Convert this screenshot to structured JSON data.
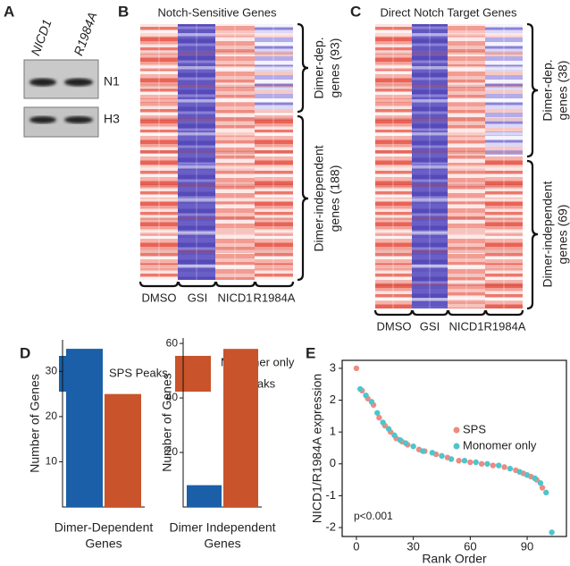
{
  "panel_a": {
    "label": "A",
    "lanes": [
      "NICD1",
      "R1984A"
    ],
    "bands": [
      "N1",
      "H3"
    ]
  },
  "panel_b": {
    "label": "B",
    "title": "Notch-Sensitive Genes",
    "groups": [
      "DMSO",
      "GSI",
      "NICD1",
      "R1984A"
    ],
    "clusters": [
      [
        "Dimer-dep.",
        "genes (93)"
      ],
      [
        "Dimer-independent",
        "genes (188)"
      ]
    ]
  },
  "panel_c": {
    "label": "C",
    "title": "Direct Notch Target Genes",
    "groups": [
      "DMSO",
      "GSI",
      "NICD1",
      "R1984A"
    ],
    "clusters": [
      [
        "Dimer-dep.",
        "genes (38)"
      ],
      [
        "Dimer-independent",
        "genes (69)"
      ]
    ]
  },
  "panel_d": {
    "label": "D",
    "legend": [
      {
        "lines": [
          "SPS Peaks"
        ],
        "color": "#1a5fa8"
      },
      {
        "lines": [
          "Monomer only",
          "Peaks"
        ],
        "color": "#c9532a"
      }
    ]
  },
  "panel_e": {
    "label": "E"
  },
  "chart_data": [
    {
      "type": "bar",
      "ylabel": "Number of Genes",
      "xlabel": [
        "Dimer-Dependent",
        "Genes"
      ],
      "values": [
        35,
        25
      ],
      "colors": [
        "#1a5fa8",
        "#c9532a"
      ],
      "ylim": [
        0,
        37
      ],
      "yticks": [
        10,
        20,
        30
      ]
    },
    {
      "type": "bar",
      "ylabel": "Number of Genes",
      "xlabel": [
        "Dimer Independent",
        "Genes"
      ],
      "values": [
        8,
        58
      ],
      "colors": [
        "#1a5fa8",
        "#c9532a"
      ],
      "ylim": [
        0,
        62
      ],
      "yticks": [
        20,
        40,
        60
      ]
    },
    {
      "type": "scatter",
      "xlabel": "Rank Order",
      "ylabel": "NICD1/R1984A expression",
      "annotation": "p<0.001",
      "xlim": [
        -7.5,
        110.7
      ],
      "xticks": [
        0,
        30,
        60,
        90
      ],
      "ylim": [
        -2.28,
        3.25
      ],
      "yticks": [
        -2,
        -1,
        0,
        1,
        2,
        3
      ],
      "series": [
        {
          "name": "SPS",
          "color": "#ee8a80",
          "x": [
            0,
            3,
            6,
            9,
            12,
            15,
            18,
            21,
            24,
            27,
            33,
            36,
            42,
            48,
            54,
            60,
            66,
            72,
            78,
            84,
            88,
            92,
            95,
            98
          ],
          "values": [
            3.0,
            2.3,
            2.05,
            1.85,
            1.45,
            1.2,
            1.0,
            0.8,
            0.7,
            0.6,
            0.45,
            0.4,
            0.3,
            0.2,
            0.1,
            0.05,
            0.0,
            -0.05,
            -0.1,
            -0.2,
            -0.3,
            -0.4,
            -0.5,
            -0.75
          ]
        },
        {
          "name": "Monomer only",
          "color": "#4ec5cb",
          "x": [
            2,
            5,
            8,
            11,
            14,
            17,
            20,
            23,
            26,
            30,
            35,
            40,
            45,
            50,
            57,
            63,
            69,
            75,
            81,
            86,
            90,
            94,
            97,
            100,
            103
          ],
          "values": [
            2.35,
            2.15,
            1.95,
            1.6,
            1.3,
            1.1,
            0.9,
            0.75,
            0.65,
            0.55,
            0.4,
            0.35,
            0.25,
            0.15,
            0.1,
            0.05,
            0.0,
            -0.05,
            -0.15,
            -0.25,
            -0.35,
            -0.45,
            -0.6,
            -0.9,
            -2.15
          ]
        }
      ]
    }
  ]
}
